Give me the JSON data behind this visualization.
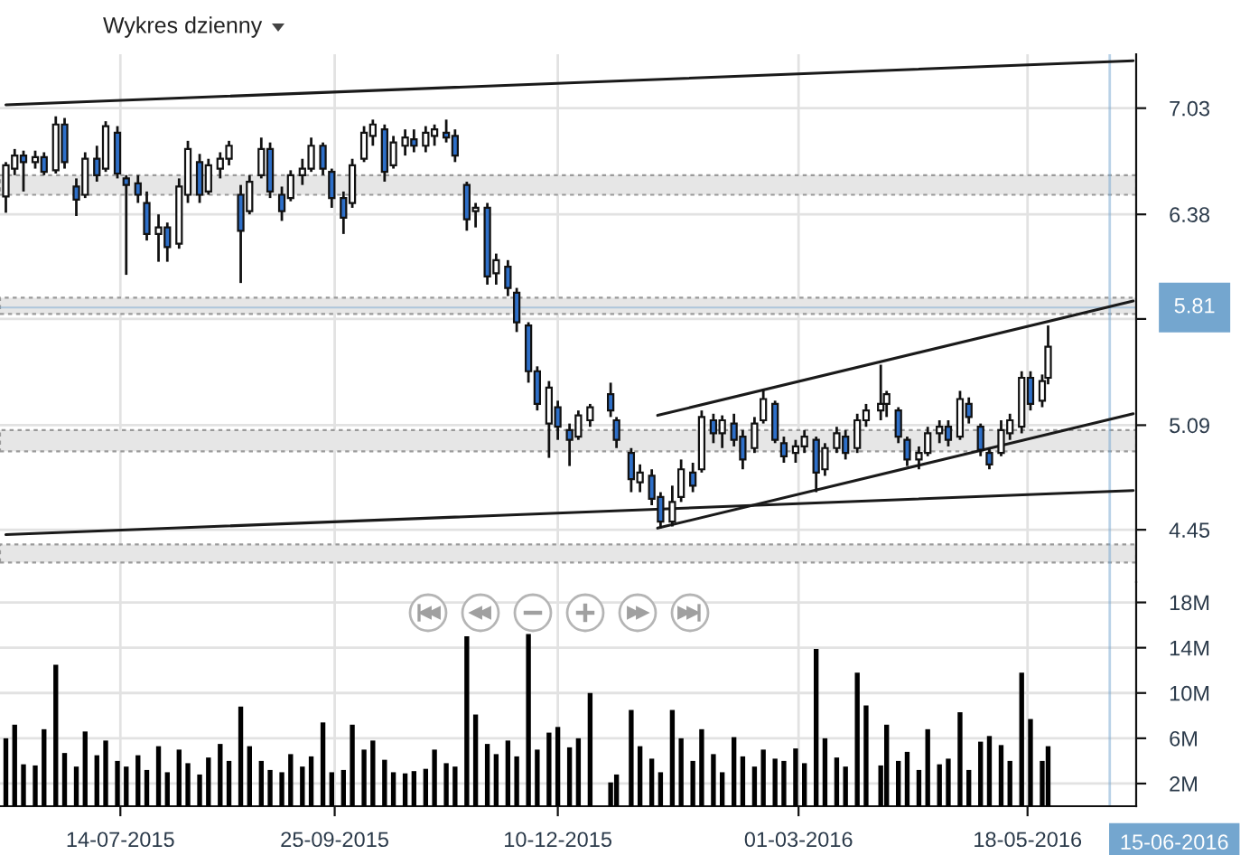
{
  "chart_data": [
    {
      "type": "candlestick",
      "title": "Wykres dzienny",
      "x": [
        "2015-06-05",
        "2015-06-08",
        "2015-06-11",
        "2015-06-15",
        "2015-06-18",
        "2015-06-22",
        "2015-06-25",
        "2015-06-29",
        "2015-07-02",
        "2015-07-06",
        "2015-07-09",
        "2015-07-13",
        "2015-07-16",
        "2015-07-20",
        "2015-07-23",
        "2015-07-27",
        "2015-07-30",
        "2015-08-03",
        "2015-08-06",
        "2015-08-10",
        "2015-08-13",
        "2015-08-17",
        "2015-08-20",
        "2015-08-24",
        "2015-08-27",
        "2015-08-31",
        "2015-09-03",
        "2015-09-07",
        "2015-09-10",
        "2015-09-14",
        "2015-09-17",
        "2015-09-21",
        "2015-09-24",
        "2015-09-28",
        "2015-10-01",
        "2015-10-05",
        "2015-10-08",
        "2015-10-12",
        "2015-10-15",
        "2015-10-19",
        "2015-10-22",
        "2015-10-26",
        "2015-10-29",
        "2015-11-02",
        "2015-11-05",
        "2015-11-09",
        "2015-11-12",
        "2015-11-16",
        "2015-11-19",
        "2015-11-23",
        "2015-11-26",
        "2015-11-30",
        "2015-12-03",
        "2015-12-07",
        "2015-12-10",
        "2015-12-14",
        "2015-12-17",
        "2015-12-21",
        "2015-12-28",
        "2015-12-30",
        "2016-01-04",
        "2016-01-07",
        "2016-01-11",
        "2016-01-14",
        "2016-01-18",
        "2016-01-21",
        "2016-01-25",
        "2016-01-28",
        "2016-02-01",
        "2016-02-04",
        "2016-02-08",
        "2016-02-11",
        "2016-02-15",
        "2016-02-18",
        "2016-02-22",
        "2016-02-25",
        "2016-02-29",
        "2016-03-03",
        "2016-03-07",
        "2016-03-10",
        "2016-03-14",
        "2016-03-17",
        "2016-03-21",
        "2016-03-24",
        "2016-03-29",
        "2016-03-31",
        "2016-04-04",
        "2016-04-07",
        "2016-04-11",
        "2016-04-14",
        "2016-04-18",
        "2016-04-21",
        "2016-04-25",
        "2016-04-28",
        "2016-05-02",
        "2016-05-05",
        "2016-05-09",
        "2016-05-12",
        "2016-05-16",
        "2016-05-19",
        "2016-05-23",
        "2016-05-25"
      ],
      "ohlc": [
        [
          6.49,
          6.7,
          6.39,
          6.68
        ],
        [
          6.66,
          6.78,
          6.62,
          6.74
        ],
        [
          6.74,
          6.77,
          6.52,
          6.7
        ],
        [
          6.7,
          6.77,
          6.66,
          6.73
        ],
        [
          6.73,
          6.76,
          6.62,
          6.64
        ],
        [
          6.65,
          6.98,
          6.63,
          6.93
        ],
        [
          6.93,
          6.97,
          6.66,
          6.7
        ],
        [
          6.55,
          6.6,
          6.37,
          6.47
        ],
        [
          6.5,
          6.76,
          6.48,
          6.72
        ],
        [
          6.72,
          6.8,
          6.58,
          6.62
        ],
        [
          6.66,
          6.95,
          6.64,
          6.92
        ],
        [
          6.88,
          6.92,
          6.6,
          6.63
        ],
        [
          6.6,
          6.62,
          6.01,
          6.56
        ],
        [
          6.57,
          6.62,
          6.45,
          6.5
        ],
        [
          6.45,
          6.52,
          6.22,
          6.26
        ],
        [
          6.26,
          6.38,
          6.09,
          6.3
        ],
        [
          6.3,
          6.33,
          6.09,
          6.18
        ],
        [
          6.2,
          6.6,
          6.17,
          6.55
        ],
        [
          6.5,
          6.83,
          6.45,
          6.78
        ],
        [
          6.7,
          6.75,
          6.45,
          6.5
        ],
        [
          6.52,
          6.72,
          6.5,
          6.68
        ],
        [
          6.66,
          6.76,
          6.6,
          6.72
        ],
        [
          6.72,
          6.83,
          6.68,
          6.8
        ],
        [
          6.5,
          6.56,
          5.96,
          6.28
        ],
        [
          6.4,
          6.62,
          6.38,
          6.58
        ],
        [
          6.62,
          6.85,
          6.6,
          6.78
        ],
        [
          6.78,
          6.82,
          6.48,
          6.52
        ],
        [
          6.5,
          6.55,
          6.34,
          6.4
        ],
        [
          6.48,
          6.65,
          6.46,
          6.62
        ],
        [
          6.62,
          6.72,
          6.56,
          6.66
        ],
        [
          6.66,
          6.85,
          6.64,
          6.8
        ],
        [
          6.8,
          6.82,
          6.62,
          6.66
        ],
        [
          6.64,
          6.66,
          6.42,
          6.48
        ],
        [
          6.48,
          6.52,
          6.26,
          6.36
        ],
        [
          6.45,
          6.72,
          6.42,
          6.68
        ],
        [
          6.72,
          6.92,
          6.7,
          6.88
        ],
        [
          6.86,
          6.96,
          6.8,
          6.93
        ],
        [
          6.9,
          6.93,
          6.58,
          6.64
        ],
        [
          6.68,
          6.86,
          6.66,
          6.82
        ],
        [
          6.8,
          6.9,
          6.74,
          6.85
        ],
        [
          6.84,
          6.9,
          6.76,
          6.8
        ],
        [
          6.8,
          6.92,
          6.76,
          6.88
        ],
        [
          6.86,
          6.93,
          6.8,
          6.9
        ],
        [
          6.88,
          6.96,
          6.82,
          6.85
        ],
        [
          6.86,
          6.9,
          6.7,
          6.74
        ],
        [
          6.56,
          6.58,
          6.28,
          6.35
        ],
        [
          6.4,
          6.45,
          6.3,
          6.42
        ],
        [
          6.42,
          6.45,
          5.95,
          6.0
        ],
        [
          6.02,
          6.14,
          5.95,
          6.1
        ],
        [
          6.06,
          6.1,
          5.88,
          5.93
        ],
        [
          5.9,
          5.93,
          5.66,
          5.72
        ],
        [
          5.7,
          5.72,
          5.35,
          5.42
        ],
        [
          5.42,
          5.45,
          5.18,
          5.22
        ],
        [
          5.1,
          5.36,
          4.89,
          5.32
        ],
        [
          5.2,
          5.24,
          5.0,
          5.08
        ],
        [
          5.06,
          5.1,
          4.84,
          5.0
        ],
        [
          5.02,
          5.18,
          5.0,
          5.15
        ],
        [
          5.12,
          5.22,
          5.08,
          5.2
        ],
        [
          5.28,
          5.35,
          5.14,
          5.18
        ],
        [
          5.12,
          5.14,
          4.95,
          5.0
        ],
        [
          4.92,
          4.95,
          4.68,
          4.76
        ],
        [
          4.74,
          4.85,
          4.68,
          4.8
        ],
        [
          4.78,
          4.82,
          4.6,
          4.64
        ],
        [
          4.65,
          4.68,
          4.46,
          4.5
        ],
        [
          4.5,
          4.72,
          4.47,
          4.62
        ],
        [
          4.65,
          4.88,
          4.62,
          4.82
        ],
        [
          4.8,
          4.86,
          4.68,
          4.72
        ],
        [
          4.82,
          5.18,
          4.8,
          5.14
        ],
        [
          5.12,
          5.16,
          4.98,
          5.04
        ],
        [
          5.04,
          5.15,
          4.95,
          5.12
        ],
        [
          5.1,
          5.16,
          4.96,
          5.0
        ],
        [
          5.02,
          5.06,
          4.82,
          4.88
        ],
        [
          4.95,
          5.14,
          4.92,
          5.1
        ],
        [
          5.12,
          5.31,
          5.1,
          5.25
        ],
        [
          5.22,
          5.24,
          4.98,
          5.0
        ],
        [
          4.98,
          5.02,
          4.86,
          4.9
        ],
        [
          4.92,
          5.0,
          4.86,
          4.96
        ],
        [
          4.96,
          5.06,
          4.92,
          5.02
        ],
        [
          5.0,
          5.02,
          4.68,
          4.8
        ],
        [
          4.82,
          4.98,
          4.78,
          4.95
        ],
        [
          4.95,
          5.08,
          4.92,
          5.04
        ],
        [
          5.02,
          5.06,
          4.88,
          4.92
        ],
        [
          4.95,
          5.16,
          4.92,
          5.12
        ],
        [
          5.12,
          5.22,
          5.08,
          5.18
        ],
        [
          5.18,
          5.46,
          5.12,
          5.22
        ],
        [
          5.22,
          5.3,
          5.14,
          5.28
        ],
        [
          5.18,
          5.2,
          4.98,
          5.02
        ],
        [
          5.0,
          5.02,
          4.84,
          4.88
        ],
        [
          4.88,
          4.96,
          4.82,
          4.92
        ],
        [
          4.92,
          5.08,
          4.9,
          5.04
        ],
        [
          5.04,
          5.12,
          4.98,
          5.08
        ],
        [
          5.08,
          5.12,
          4.96,
          5.0
        ],
        [
          5.02,
          5.3,
          5.0,
          5.25
        ],
        [
          5.22,
          5.26,
          5.1,
          5.14
        ],
        [
          5.08,
          5.1,
          4.9,
          4.94
        ],
        [
          4.92,
          4.95,
          4.82,
          4.85
        ],
        [
          4.92,
          5.12,
          4.9,
          5.06
        ],
        [
          5.04,
          5.16,
          5.0,
          5.12
        ],
        [
          5.08,
          5.42,
          5.04,
          5.38
        ],
        [
          5.38,
          5.42,
          5.18,
          5.22
        ],
        [
          5.24,
          5.4,
          5.2,
          5.36
        ],
        [
          5.38,
          5.7,
          5.34,
          5.57
        ]
      ],
      "colors": [
        "#ffffff",
        "#ffffff",
        "#2e6fc8",
        "#ffffff",
        "#2e6fc8",
        "#ffffff",
        "#2e6fc8",
        "#2e6fc8",
        "#ffffff",
        "#2e6fc8",
        "#ffffff",
        "#2e6fc8",
        "#2e6fc8",
        "#2e6fc8",
        "#2e6fc8",
        "#ffffff",
        "#2e6fc8",
        "#ffffff",
        "#ffffff",
        "#2e6fc8",
        "#ffffff",
        "#ffffff",
        "#ffffff",
        "#2e6fc8",
        "#ffffff",
        "#ffffff",
        "#2e6fc8",
        "#2e6fc8",
        "#ffffff",
        "#ffffff",
        "#ffffff",
        "#2e6fc8",
        "#2e6fc8",
        "#2e6fc8",
        "#ffffff",
        "#ffffff",
        "#ffffff",
        "#2e6fc8",
        "#ffffff",
        "#ffffff",
        "#2e6fc8",
        "#ffffff",
        "#ffffff",
        "#2e6fc8",
        "#2e6fc8",
        "#2e6fc8",
        "#ffffff",
        "#2e6fc8",
        "#ffffff",
        "#2e6fc8",
        "#2e6fc8",
        "#2e6fc8",
        "#2e6fc8",
        "#ffffff",
        "#2e6fc8",
        "#2e6fc8",
        "#ffffff",
        "#ffffff",
        "#2e6fc8",
        "#2e6fc8",
        "#2e6fc8",
        "#ffffff",
        "#2e6fc8",
        "#2e6fc8",
        "#ffffff",
        "#ffffff",
        "#2e6fc8",
        "#ffffff",
        "#2e6fc8",
        "#ffffff",
        "#2e6fc8",
        "#2e6fc8",
        "#ffffff",
        "#ffffff",
        "#2e6fc8",
        "#2e6fc8",
        "#ffffff",
        "#ffffff",
        "#2e6fc8",
        "#ffffff",
        "#ffffff",
        "#2e6fc8",
        "#ffffff",
        "#ffffff",
        "#ffffff",
        "#ffffff",
        "#2e6fc8",
        "#2e6fc8",
        "#ffffff",
        "#ffffff",
        "#ffffff",
        "#2e6fc8",
        "#ffffff",
        "#2e6fc8",
        "#2e6fc8",
        "#2e6fc8",
        "#ffffff",
        "#ffffff",
        "#ffffff",
        "#2e6fc8",
        "#ffffff",
        "#ffffff"
      ],
      "series": [
        {
          "type": "line",
          "color": "#1a1a1a",
          "x": [
            "2015-06-05",
            "2016-06-23"
          ],
          "values": [
            7.05,
            7.32
          ]
        },
        {
          "type": "line",
          "color": "#1a1a1a",
          "x": [
            "2015-06-05",
            "2016-06-23"
          ],
          "values": [
            4.42,
            4.69
          ]
        },
        {
          "type": "line",
          "color": "#1a1a1a",
          "x": [
            "2016-01-13",
            "2016-06-23"
          ],
          "values": [
            5.15,
            5.85
          ]
        },
        {
          "type": "line",
          "color": "#1a1a1a",
          "x": [
            "2016-01-13",
            "2016-06-23"
          ],
          "values": [
            4.46,
            5.16
          ]
        }
      ],
      "bands": [
        {
          "axis": "y",
          "from": 6.5,
          "to": 6.62,
          "color": "#e6e6e6"
        },
        {
          "axis": "y",
          "from": 5.77,
          "to": 5.87,
          "color": "#e6e6e6"
        },
        {
          "axis": "y",
          "from": 4.93,
          "to": 5.06,
          "color": "#e6e6e6"
        },
        {
          "axis": "y",
          "from": 4.25,
          "to": 4.36,
          "color": "#e6e6e6"
        }
      ],
      "ref_lines": [
        {
          "axis": "y",
          "value": 5.81,
          "label": "5.81",
          "color": "#74a6cf"
        },
        {
          "axis": "x",
          "value": "2016-06-15",
          "color": "#74a6cf"
        }
      ],
      "xlim": [
        "2015-06-03",
        "2016-06-24"
      ],
      "xticks": [
        {
          "value": "2015-07-14",
          "label": null
        },
        {
          "value": "2015-09-25",
          "label": null
        },
        {
          "value": "2015-12-10",
          "label": null
        },
        {
          "value": "2016-03-01",
          "label": null
        },
        {
          "value": "2016-05-18",
          "label": null
        }
      ],
      "ylim": [
        4.13,
        7.36
      ],
      "yticks": [
        7.03,
        6.38,
        {
          "value": 5.74,
          "label": null
        },
        5.09,
        4.45
      ],
      "grid": true,
      "tick_labels": "y"
    },
    {
      "type": "bar",
      "color": "#000000",
      "x": [
        "2015-06-05",
        "2015-06-08",
        "2015-06-11",
        "2015-06-15",
        "2015-06-18",
        "2015-06-22",
        "2015-06-25",
        "2015-06-29",
        "2015-07-02",
        "2015-07-06",
        "2015-07-09",
        "2015-07-13",
        "2015-07-16",
        "2015-07-20",
        "2015-07-23",
        "2015-07-27",
        "2015-07-30",
        "2015-08-03",
        "2015-08-06",
        "2015-08-10",
        "2015-08-13",
        "2015-08-17",
        "2015-08-20",
        "2015-08-24",
        "2015-08-27",
        "2015-08-31",
        "2015-09-03",
        "2015-09-07",
        "2015-09-10",
        "2015-09-14",
        "2015-09-17",
        "2015-09-21",
        "2015-09-24",
        "2015-09-28",
        "2015-10-01",
        "2015-10-05",
        "2015-10-08",
        "2015-10-12",
        "2015-10-15",
        "2015-10-19",
        "2015-10-22",
        "2015-10-26",
        "2015-10-29",
        "2015-11-02",
        "2015-11-05",
        "2015-11-09",
        "2015-11-12",
        "2015-11-16",
        "2015-11-19",
        "2015-11-23",
        "2015-11-26",
        "2015-11-30",
        "2015-12-03",
        "2015-12-07",
        "2015-12-10",
        "2015-12-14",
        "2015-12-17",
        "2015-12-21",
        "2015-12-28",
        "2015-12-30",
        "2016-01-04",
        "2016-01-07",
        "2016-01-11",
        "2016-01-14",
        "2016-01-18",
        "2016-01-21",
        "2016-01-25",
        "2016-01-28",
        "2016-02-01",
        "2016-02-04",
        "2016-02-08",
        "2016-02-11",
        "2016-02-15",
        "2016-02-18",
        "2016-02-22",
        "2016-02-25",
        "2016-02-29",
        "2016-03-03",
        "2016-03-07",
        "2016-03-10",
        "2016-03-14",
        "2016-03-17",
        "2016-03-21",
        "2016-03-24",
        "2016-03-29",
        "2016-03-31",
        "2016-04-04",
        "2016-04-07",
        "2016-04-11",
        "2016-04-14",
        "2016-04-18",
        "2016-04-21",
        "2016-04-25",
        "2016-04-28",
        "2016-05-02",
        "2016-05-05",
        "2016-05-09",
        "2016-05-12",
        "2016-05-16",
        "2016-05-19",
        "2016-05-23",
        "2016-05-25"
      ],
      "values": [
        6.0,
        7.2,
        3.7,
        3.6,
        6.8,
        12.5,
        4.7,
        3.5,
        6.6,
        4.5,
        5.8,
        4.0,
        3.5,
        4.5,
        3.2,
        5.3,
        3.0,
        5.0,
        3.8,
        2.8,
        4.3,
        5.5,
        4.0,
        8.8,
        5.3,
        4.0,
        3.2,
        3.0,
        4.6,
        3.5,
        4.4,
        7.4,
        3.0,
        3.2,
        7.2,
        5.0,
        5.8,
        4.1,
        3.0,
        2.9,
        3.1,
        3.3,
        5.0,
        3.8,
        3.5,
        15.0,
        8.1,
        5.5,
        4.6,
        5.8,
        4.4,
        15.2,
        5.0,
        6.5,
        7.0,
        5.2,
        6.0,
        10.0,
        2.1,
        2.8,
        8.5,
        5.3,
        4.2,
        3.0,
        8.5,
        6.0,
        4.0,
        6.8,
        4.6,
        3.0,
        6.1,
        4.4,
        3.5,
        5.0,
        4.2,
        4.0,
        5.1,
        3.8,
        13.9,
        6.0,
        4.3,
        3.5,
        11.8,
        8.9,
        3.6,
        7.2,
        4.0,
        4.8,
        3.2,
        6.8,
        3.7,
        4.2,
        8.3,
        3.2,
        5.7,
        6.2,
        5.4,
        4.0,
        11.8,
        7.7,
        4.0,
        5.3
      ],
      "ref_lines": [
        {
          "axis": "x",
          "value": "2016-06-15",
          "label": "15-06-2016",
          "color": "#74a6cf"
        }
      ],
      "xlim": [
        "2015-06-03",
        "2016-06-24"
      ],
      "xticks": [
        {
          "value": "2015-07-14",
          "label": "14-07-2015"
        },
        {
          "value": "2015-09-25",
          "label": "25-09-2015"
        },
        {
          "value": "2015-12-10",
          "label": "10-12-2015"
        },
        {
          "value": "2016-03-01",
          "label": "01-03-2016"
        },
        {
          "value": "2016-05-18",
          "label": "18-05-2016"
        }
      ],
      "ylim": [
        0,
        19.8
      ],
      "yticks": [
        {
          "value": 2,
          "label": "2M"
        },
        {
          "value": 6,
          "label": "6M"
        },
        {
          "value": 10,
          "label": "10M"
        },
        {
          "value": 14,
          "label": "14M"
        },
        {
          "value": 18,
          "label": "18M"
        }
      ],
      "grid": true
    }
  ]
}
